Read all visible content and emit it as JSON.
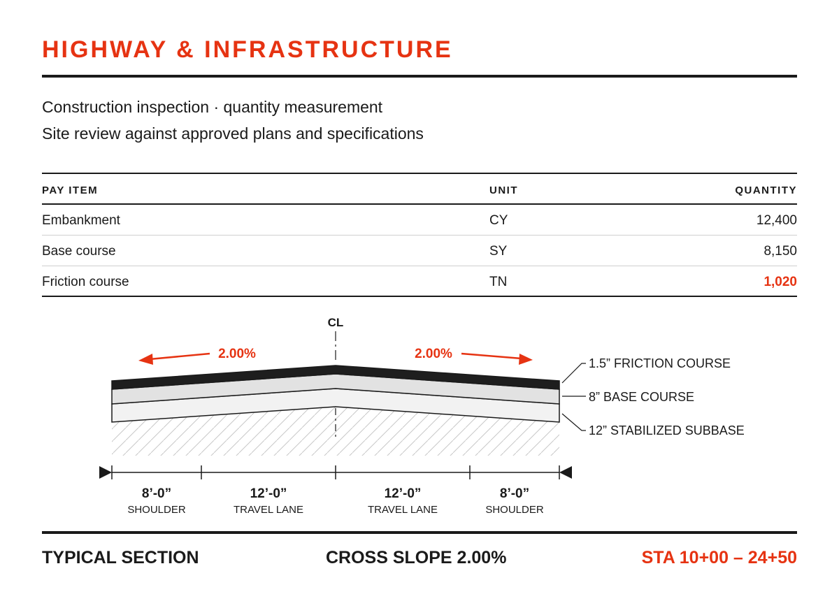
{
  "header": {
    "title": "HIGHWAY & INFRASTRUCTURE"
  },
  "intro": {
    "line1": "Construction inspection · quantity measurement",
    "line2": "Site review against approved plans and specifications"
  },
  "table": {
    "columns": [
      "PAY ITEM",
      "UNIT",
      "QUANTITY"
    ],
    "rows": [
      {
        "item": "Embankment",
        "unit": "CY",
        "quantity": "12,400",
        "highlight": false
      },
      {
        "item": "Base course",
        "unit": "SY",
        "quantity": "8,150",
        "highlight": false
      },
      {
        "item": "Friction course",
        "unit": "TN",
        "quantity": "1,020",
        "highlight": true
      }
    ]
  },
  "diagram": {
    "centerline_label": "CL",
    "slope_left": "2.00%",
    "slope_right": "2.00%",
    "layers": [
      "1.5” FRICTION COURSE",
      "8” BASE COURSE",
      "12” STABILIZED SUBBASE"
    ],
    "dimensions": [
      {
        "value": "8’-0”",
        "label": "SHOULDER"
      },
      {
        "value": "12’-0”",
        "label": "TRAVEL LANE"
      },
      {
        "value": "12’-0”",
        "label": "TRAVEL LANE"
      },
      {
        "value": "8’-0”",
        "label": "SHOULDER"
      }
    ]
  },
  "footer": {
    "left": "TYPICAL SECTION",
    "center": "CROSS SLOPE 2.00%",
    "right": "STA 10+00 – 24+50"
  },
  "colors": {
    "accent": "#e63312",
    "ink": "#1a1a1a",
    "base": "#e2e2e2",
    "subbase": "#f2f2f2"
  }
}
